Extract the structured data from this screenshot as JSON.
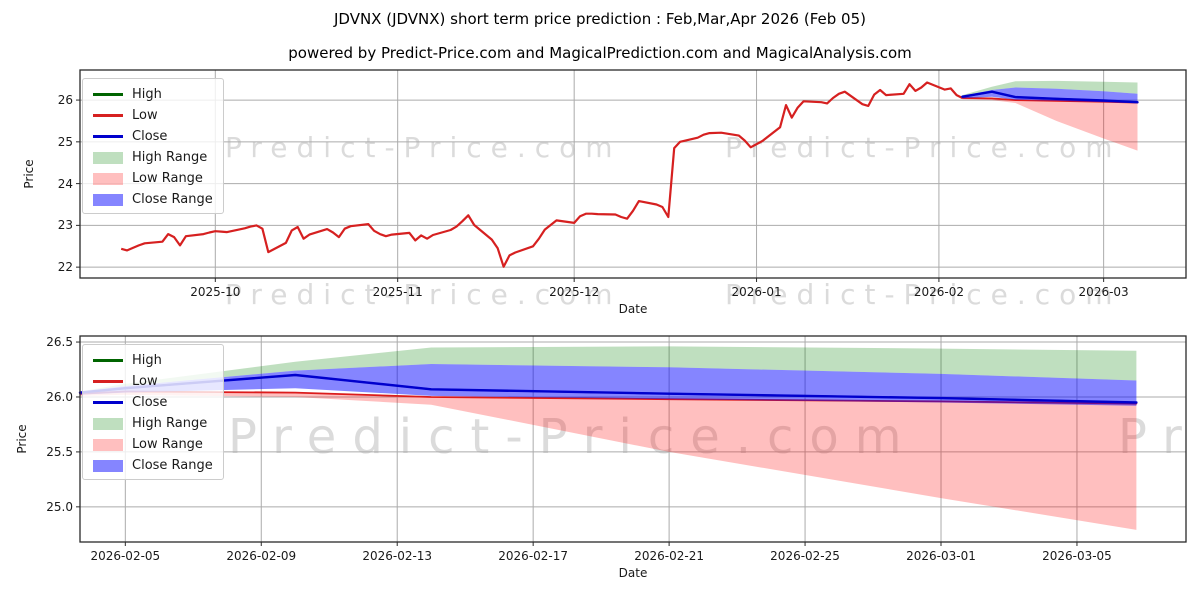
{
  "figure": {
    "title": "JDVNX (JDVNX) short term price prediction : Feb,Mar,Apr 2026 (Feb 05)",
    "subtitle": "powered by Predict-Price.com and MagicalPrediction.com and MagicalAnalysis.com",
    "watermark": "Predict-Price.com",
    "background": "#ffffff"
  },
  "colors": {
    "high": "#006400",
    "low": "#d62020",
    "close": "#0000cd",
    "high_range": "rgba(0,128,0,0.25)",
    "low_range": "rgba(255,0,0,0.25)",
    "close_range": "rgba(0,0,255,0.48)",
    "grid": "#ababab",
    "spine": "#2a2a2a",
    "tick_text": "#1a1a1a",
    "watermark": "rgba(160,160,160,0.38)"
  },
  "legend": {
    "items": [
      {
        "label": "High",
        "type": "line",
        "color": "high"
      },
      {
        "label": "Low",
        "type": "line",
        "color": "low"
      },
      {
        "label": "Close",
        "type": "line",
        "color": "close"
      },
      {
        "label": "High Range",
        "type": "patch",
        "color": "high_range"
      },
      {
        "label": "Low Range",
        "type": "patch",
        "color": "low_range"
      },
      {
        "label": "Close Range",
        "type": "patch",
        "color": "close_range"
      }
    ]
  },
  "chart_data": [
    {
      "id": "main",
      "type": "line",
      "xlabel": "Date",
      "ylabel": "Price",
      "grid": true,
      "legend_position": "upper left",
      "x_domain": [
        "2025-09-08",
        "2026-03-15"
      ],
      "y_domain": [
        21.74,
        26.72
      ],
      "x_ticks": [
        {
          "date": "2025-10-01",
          "label": "2025-10"
        },
        {
          "date": "2025-11-01",
          "label": "2025-11"
        },
        {
          "date": "2025-12-01",
          "label": "2025-12"
        },
        {
          "date": "2026-01-01",
          "label": "2026-01"
        },
        {
          "date": "2026-02-01",
          "label": "2026-02"
        },
        {
          "date": "2026-03-01",
          "label": "2026-03"
        }
      ],
      "y_ticks": [
        {
          "value": 26,
          "label": "26"
        },
        {
          "value": 25,
          "label": "25"
        },
        {
          "value": 24,
          "label": "24"
        },
        {
          "value": 23,
          "label": "23"
        },
        {
          "value": 22,
          "label": "22"
        }
      ],
      "series_history_low": {
        "name": "Low (historical)",
        "dates": [
          "2025-09-15",
          "2025-09-16",
          "2025-09-17",
          "2025-09-18",
          "2025-09-19",
          "2025-09-22",
          "2025-09-23",
          "2025-09-24",
          "2025-09-25",
          "2025-09-26",
          "2025-09-29",
          "2025-09-30",
          "2025-10-01",
          "2025-10-02",
          "2025-10-03",
          "2025-10-06",
          "2025-10-07",
          "2025-10-08",
          "2025-10-09",
          "2025-10-10",
          "2025-10-13",
          "2025-10-14",
          "2025-10-15",
          "2025-10-16",
          "2025-10-17",
          "2025-10-20",
          "2025-10-21",
          "2025-10-22",
          "2025-10-23",
          "2025-10-24",
          "2025-10-27",
          "2025-10-28",
          "2025-10-29",
          "2025-10-30",
          "2025-10-31",
          "2025-11-03",
          "2025-11-04",
          "2025-11-05",
          "2025-11-06",
          "2025-11-07",
          "2025-11-10",
          "2025-11-11",
          "2025-11-12",
          "2025-11-13",
          "2025-11-14",
          "2025-11-17",
          "2025-11-18",
          "2025-11-19",
          "2025-11-20",
          "2025-11-21",
          "2025-11-24",
          "2025-11-25",
          "2025-11-26",
          "2025-11-28",
          "2025-12-01",
          "2025-12-02",
          "2025-12-03",
          "2025-12-04",
          "2025-12-05",
          "2025-12-08",
          "2025-12-09",
          "2025-12-10",
          "2025-12-11",
          "2025-12-12",
          "2025-12-15",
          "2025-12-16",
          "2025-12-17",
          "2025-12-18",
          "2025-12-19",
          "2025-12-22",
          "2025-12-23",
          "2025-12-24",
          "2025-12-26",
          "2025-12-29",
          "2025-12-30",
          "2025-12-31",
          "2026-01-02",
          "2026-01-05",
          "2026-01-06",
          "2026-01-07",
          "2026-01-08",
          "2026-01-09",
          "2026-01-12",
          "2026-01-13",
          "2026-01-14",
          "2026-01-15",
          "2026-01-16",
          "2026-01-19",
          "2026-01-20",
          "2026-01-21",
          "2026-01-22",
          "2026-01-23",
          "2026-01-26",
          "2026-01-27",
          "2026-01-28",
          "2026-01-29",
          "2026-01-30",
          "2026-02-02",
          "2026-02-03",
          "2026-02-04",
          "2026-02-05"
        ],
        "values": [
          22.44,
          22.4,
          22.46,
          22.52,
          22.57,
          22.61,
          22.79,
          22.72,
          22.52,
          22.74,
          22.79,
          22.83,
          22.86,
          22.85,
          22.84,
          22.93,
          22.97,
          23.0,
          22.92,
          22.36,
          22.58,
          22.88,
          22.96,
          22.68,
          22.78,
          22.91,
          22.83,
          22.72,
          22.92,
          22.98,
          23.03,
          22.87,
          22.79,
          22.74,
          22.78,
          22.82,
          22.64,
          22.76,
          22.68,
          22.77,
          22.89,
          22.97,
          23.1,
          23.24,
          23.01,
          22.66,
          22.45,
          22.01,
          22.28,
          22.35,
          22.5,
          22.68,
          22.9,
          23.12,
          23.06,
          23.22,
          23.28,
          23.28,
          23.27,
          23.26,
          23.2,
          23.16,
          23.35,
          23.58,
          23.5,
          23.44,
          23.2,
          24.85,
          25.0,
          25.1,
          25.17,
          25.21,
          25.22,
          25.15,
          25.03,
          24.87,
          25.02,
          25.35,
          25.88,
          25.58,
          25.82,
          25.97,
          25.95,
          25.92,
          26.05,
          26.15,
          26.2,
          25.9,
          25.86,
          26.13,
          26.24,
          26.12,
          26.15,
          26.38,
          26.22,
          26.3,
          26.42,
          26.25,
          26.28,
          26.12,
          26.05
        ]
      },
      "prediction": {
        "dates": [
          "2026-02-05",
          "2026-02-10",
          "2026-02-14",
          "2026-02-21",
          "2026-03-01",
          "2026-03-06T18:00"
        ],
        "close": [
          26.08,
          26.2,
          26.07,
          26.03,
          25.99,
          25.95
        ],
        "high": [
          26.08,
          26.2,
          26.07,
          26.03,
          25.99,
          25.95
        ],
        "low": [
          26.05,
          26.04,
          26.0,
          25.98,
          25.96,
          25.94
        ],
        "high_range_top": [
          26.12,
          26.32,
          26.45,
          26.46,
          26.44,
          26.42
        ],
        "close_range_top": [
          26.1,
          26.24,
          26.3,
          26.27,
          26.21,
          26.15
        ],
        "close_range_bottom": [
          26.04,
          26.08,
          26.01,
          25.98,
          25.95,
          25.92
        ],
        "low_range_bottom": [
          26.02,
          26.0,
          25.93,
          25.5,
          25.08,
          24.79
        ]
      }
    },
    {
      "id": "zoom",
      "type": "line",
      "xlabel": "Date",
      "ylabel": "Price",
      "grid": true,
      "legend_position": "upper left",
      "x_domain": [
        "2026-02-03T16:00",
        "2026-03-08T05:00"
      ],
      "y_domain": [
        24.68,
        26.555
      ],
      "x_ticks": [
        {
          "date": "2026-02-05",
          "label": "2026-02-05"
        },
        {
          "date": "2026-02-09",
          "label": "2026-02-09"
        },
        {
          "date": "2026-02-13",
          "label": "2026-02-13"
        },
        {
          "date": "2026-02-17",
          "label": "2026-02-17"
        },
        {
          "date": "2026-02-21",
          "label": "2026-02-21"
        },
        {
          "date": "2026-02-25",
          "label": "2026-02-25"
        },
        {
          "date": "2026-03-01",
          "label": "2026-03-01"
        },
        {
          "date": "2026-03-05",
          "label": "2026-03-05"
        }
      ],
      "y_ticks": [
        {
          "value": 26.5,
          "label": "26.5"
        },
        {
          "value": 26.0,
          "label": "26.0"
        },
        {
          "value": 25.5,
          "label": "25.5"
        },
        {
          "value": 25.0,
          "label": "25.0"
        }
      ],
      "prediction": {
        "dates": [
          "2026-02-03T16:00",
          "2026-02-05",
          "2026-02-10",
          "2026-02-14",
          "2026-02-21",
          "2026-03-01",
          "2026-03-06T18:00"
        ],
        "close": [
          26.04,
          26.08,
          26.2,
          26.07,
          26.03,
          25.99,
          25.95
        ],
        "high": [
          26.04,
          26.08,
          26.2,
          26.07,
          26.03,
          25.99,
          25.95
        ],
        "low": [
          26.03,
          26.05,
          26.04,
          26.0,
          25.98,
          25.96,
          25.94
        ],
        "high_range_top": [
          26.05,
          26.12,
          26.32,
          26.45,
          26.46,
          26.44,
          26.42
        ],
        "close_range_top": [
          26.05,
          26.1,
          26.24,
          26.3,
          26.27,
          26.21,
          26.15
        ],
        "close_range_bottom": [
          26.02,
          26.04,
          26.08,
          26.01,
          25.98,
          25.95,
          25.92
        ],
        "low_range_bottom": [
          26.01,
          26.02,
          26.0,
          25.93,
          25.5,
          25.08,
          24.79
        ]
      }
    }
  ]
}
